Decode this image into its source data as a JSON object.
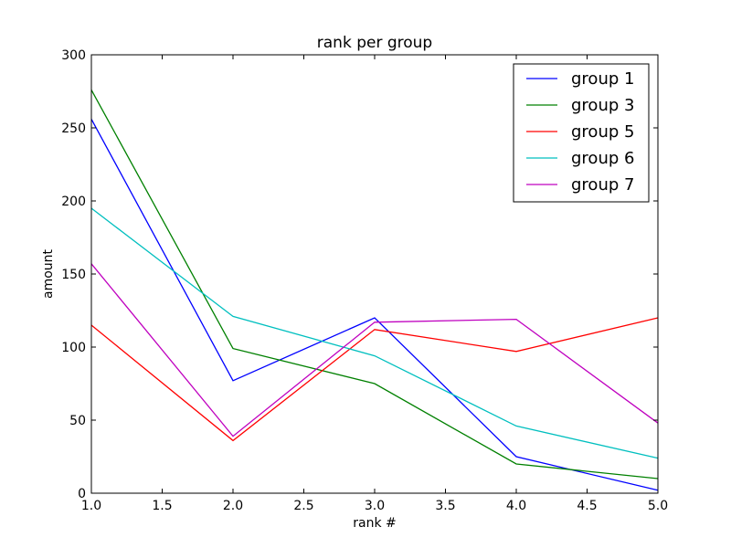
{
  "chart_data": {
    "type": "line",
    "title": "rank per group",
    "xlabel": "rank #",
    "ylabel": "amount",
    "xlim": [
      1.0,
      5.0
    ],
    "ylim": [
      0,
      300
    ],
    "x": [
      1,
      2,
      3,
      4,
      5
    ],
    "xticks": [
      "1.0",
      "1.5",
      "2.0",
      "2.5",
      "3.0",
      "3.5",
      "4.0",
      "4.5",
      "5.0"
    ],
    "xtick_values": [
      1.0,
      1.5,
      2.0,
      2.5,
      3.0,
      3.5,
      4.0,
      4.5,
      5.0
    ],
    "yticks": [
      "0",
      "50",
      "100",
      "150",
      "200",
      "250",
      "300"
    ],
    "ytick_values": [
      0,
      50,
      100,
      150,
      200,
      250,
      300
    ],
    "grid": false,
    "legend_position": "top-right",
    "series": [
      {
        "name": "group 1",
        "color": "#0000ff",
        "values": [
          256,
          77,
          120,
          25,
          2
        ]
      },
      {
        "name": "group 3",
        "color": "#008000",
        "values": [
          276,
          99,
          75,
          20,
          10
        ]
      },
      {
        "name": "group 5",
        "color": "#ff0000",
        "values": [
          115,
          36,
          112,
          97,
          120
        ]
      },
      {
        "name": "group 6",
        "color": "#00bfbf",
        "values": [
          195,
          121,
          94,
          46,
          24
        ]
      },
      {
        "name": "group 7",
        "color": "#bf00bf",
        "values": [
          157,
          39,
          117,
          119,
          48
        ]
      }
    ]
  }
}
